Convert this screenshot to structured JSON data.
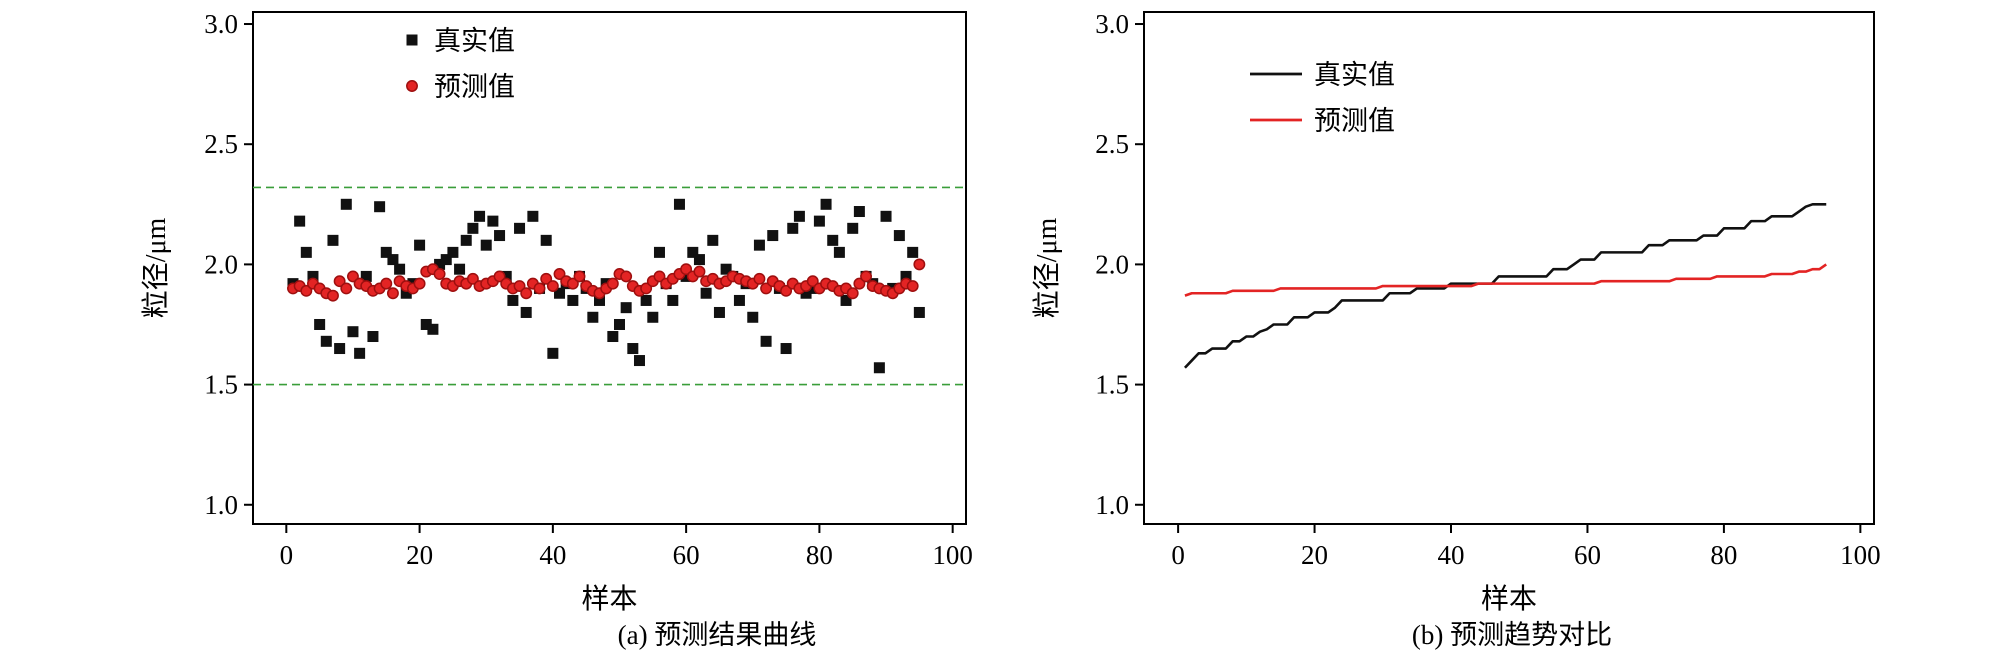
{
  "figure": {
    "background": "#ffffff",
    "description_visible_text_only": true
  },
  "chart_data": [
    {
      "type": "scatter",
      "caption": "(a) 预测结果曲线",
      "xlabel": "样本",
      "ylabel": "粒径/μm",
      "xlim": [
        -5,
        102
      ],
      "ylim": [
        0.92,
        3.05
      ],
      "xticks": [
        0,
        20,
        40,
        60,
        80,
        100
      ],
      "yticks": [
        "1.0",
        "1.5",
        "2.0",
        "2.5",
        "3.0"
      ],
      "grid": false,
      "legend_position": "inside-top",
      "reference_lines": [
        {
          "y": 2.32,
          "color": "#3a9e3a",
          "style": "dashed"
        },
        {
          "y": 1.5,
          "color": "#3a9e3a",
          "style": "dashed"
        }
      ],
      "series": [
        {
          "key": "true-values",
          "name": "真实值",
          "marker": "square",
          "color": "#111111",
          "x_description": "样本序号 1–95",
          "y": [
            1.92,
            2.18,
            2.05,
            1.95,
            1.75,
            1.68,
            2.1,
            1.65,
            2.25,
            1.72,
            1.63,
            1.95,
            1.7,
            2.24,
            2.05,
            2.02,
            1.98,
            1.88,
            1.92,
            2.08,
            1.75,
            1.73,
            2.0,
            2.02,
            2.05,
            1.98,
            2.1,
            2.15,
            2.2,
            2.08,
            2.18,
            2.12,
            1.95,
            1.85,
            2.15,
            1.8,
            2.2,
            1.9,
            2.1,
            1.63,
            1.88,
            1.92,
            1.85,
            1.95,
            1.9,
            1.78,
            1.85,
            1.92,
            1.7,
            1.75,
            1.82,
            1.65,
            1.6,
            1.85,
            1.78,
            2.05,
            1.92,
            1.85,
            2.25,
            1.95,
            2.05,
            2.02,
            1.88,
            2.1,
            1.8,
            1.98,
            1.95,
            1.85,
            1.92,
            1.78,
            2.08,
            1.68,
            2.12,
            1.9,
            1.65,
            2.15,
            2.2,
            1.88,
            1.9,
            2.18,
            2.25,
            2.1,
            2.05,
            1.85,
            2.15,
            2.22,
            1.95,
            1.92,
            1.57,
            2.2,
            1.9,
            2.12,
            1.95,
            2.05,
            1.8
          ]
        },
        {
          "key": "predicted-values",
          "name": "预测值",
          "marker": "circle",
          "color": "#e32424",
          "edge_color": "#9e0f0f",
          "x_description": "样本序号 1–95",
          "y": [
            1.9,
            1.91,
            1.89,
            1.92,
            1.9,
            1.88,
            1.87,
            1.93,
            1.9,
            1.95,
            1.92,
            1.91,
            1.89,
            1.9,
            1.92,
            1.88,
            1.93,
            1.91,
            1.9,
            1.92,
            1.97,
            1.98,
            1.96,
            1.92,
            1.91,
            1.93,
            1.92,
            1.94,
            1.91,
            1.92,
            1.93,
            1.95,
            1.92,
            1.9,
            1.91,
            1.88,
            1.92,
            1.9,
            1.94,
            1.91,
            1.96,
            1.93,
            1.92,
            1.95,
            1.91,
            1.89,
            1.88,
            1.9,
            1.92,
            1.96,
            1.95,
            1.91,
            1.89,
            1.9,
            1.93,
            1.95,
            1.92,
            1.94,
            1.96,
            1.98,
            1.95,
            1.97,
            1.93,
            1.94,
            1.92,
            1.93,
            1.95,
            1.94,
            1.93,
            1.92,
            1.94,
            1.9,
            1.93,
            1.91,
            1.89,
            1.92,
            1.9,
            1.91,
            1.93,
            1.9,
            1.92,
            1.91,
            1.89,
            1.9,
            1.88,
            1.92,
            1.95,
            1.91,
            1.9,
            1.89,
            1.88,
            1.9,
            1.92,
            1.91,
            2.0
          ]
        }
      ]
    },
    {
      "type": "line",
      "caption": "(b) 预测趋势对比",
      "xlabel": "样本",
      "ylabel": "粒径/μm",
      "xlim": [
        -5,
        102
      ],
      "ylim": [
        0.92,
        3.05
      ],
      "xticks": [
        0,
        20,
        40,
        60,
        80,
        100
      ],
      "yticks": [
        "1.0",
        "1.5",
        "2.0",
        "2.5",
        "3.0"
      ],
      "grid": false,
      "legend_position": "inside-top",
      "series": [
        {
          "key": "true-values",
          "name": "真实值",
          "color": "#111111",
          "x_description": "样本序号 1–95",
          "y_source": {
            "panel": 0,
            "series": 0,
            "transform": "sort_ascending",
            "note": "panel (a) 真实值 sorted ascending, range ≈1.57–2.25"
          }
        },
        {
          "key": "predicted-values",
          "name": "预测值",
          "color": "#e32424",
          "x_description": "样本序号 1–95",
          "y_source": {
            "panel": 0,
            "series": 1,
            "transform": "sort_ascending",
            "note": "panel (a) 预测值 sorted ascending, range ≈1.87–2.00"
          }
        }
      ]
    }
  ]
}
